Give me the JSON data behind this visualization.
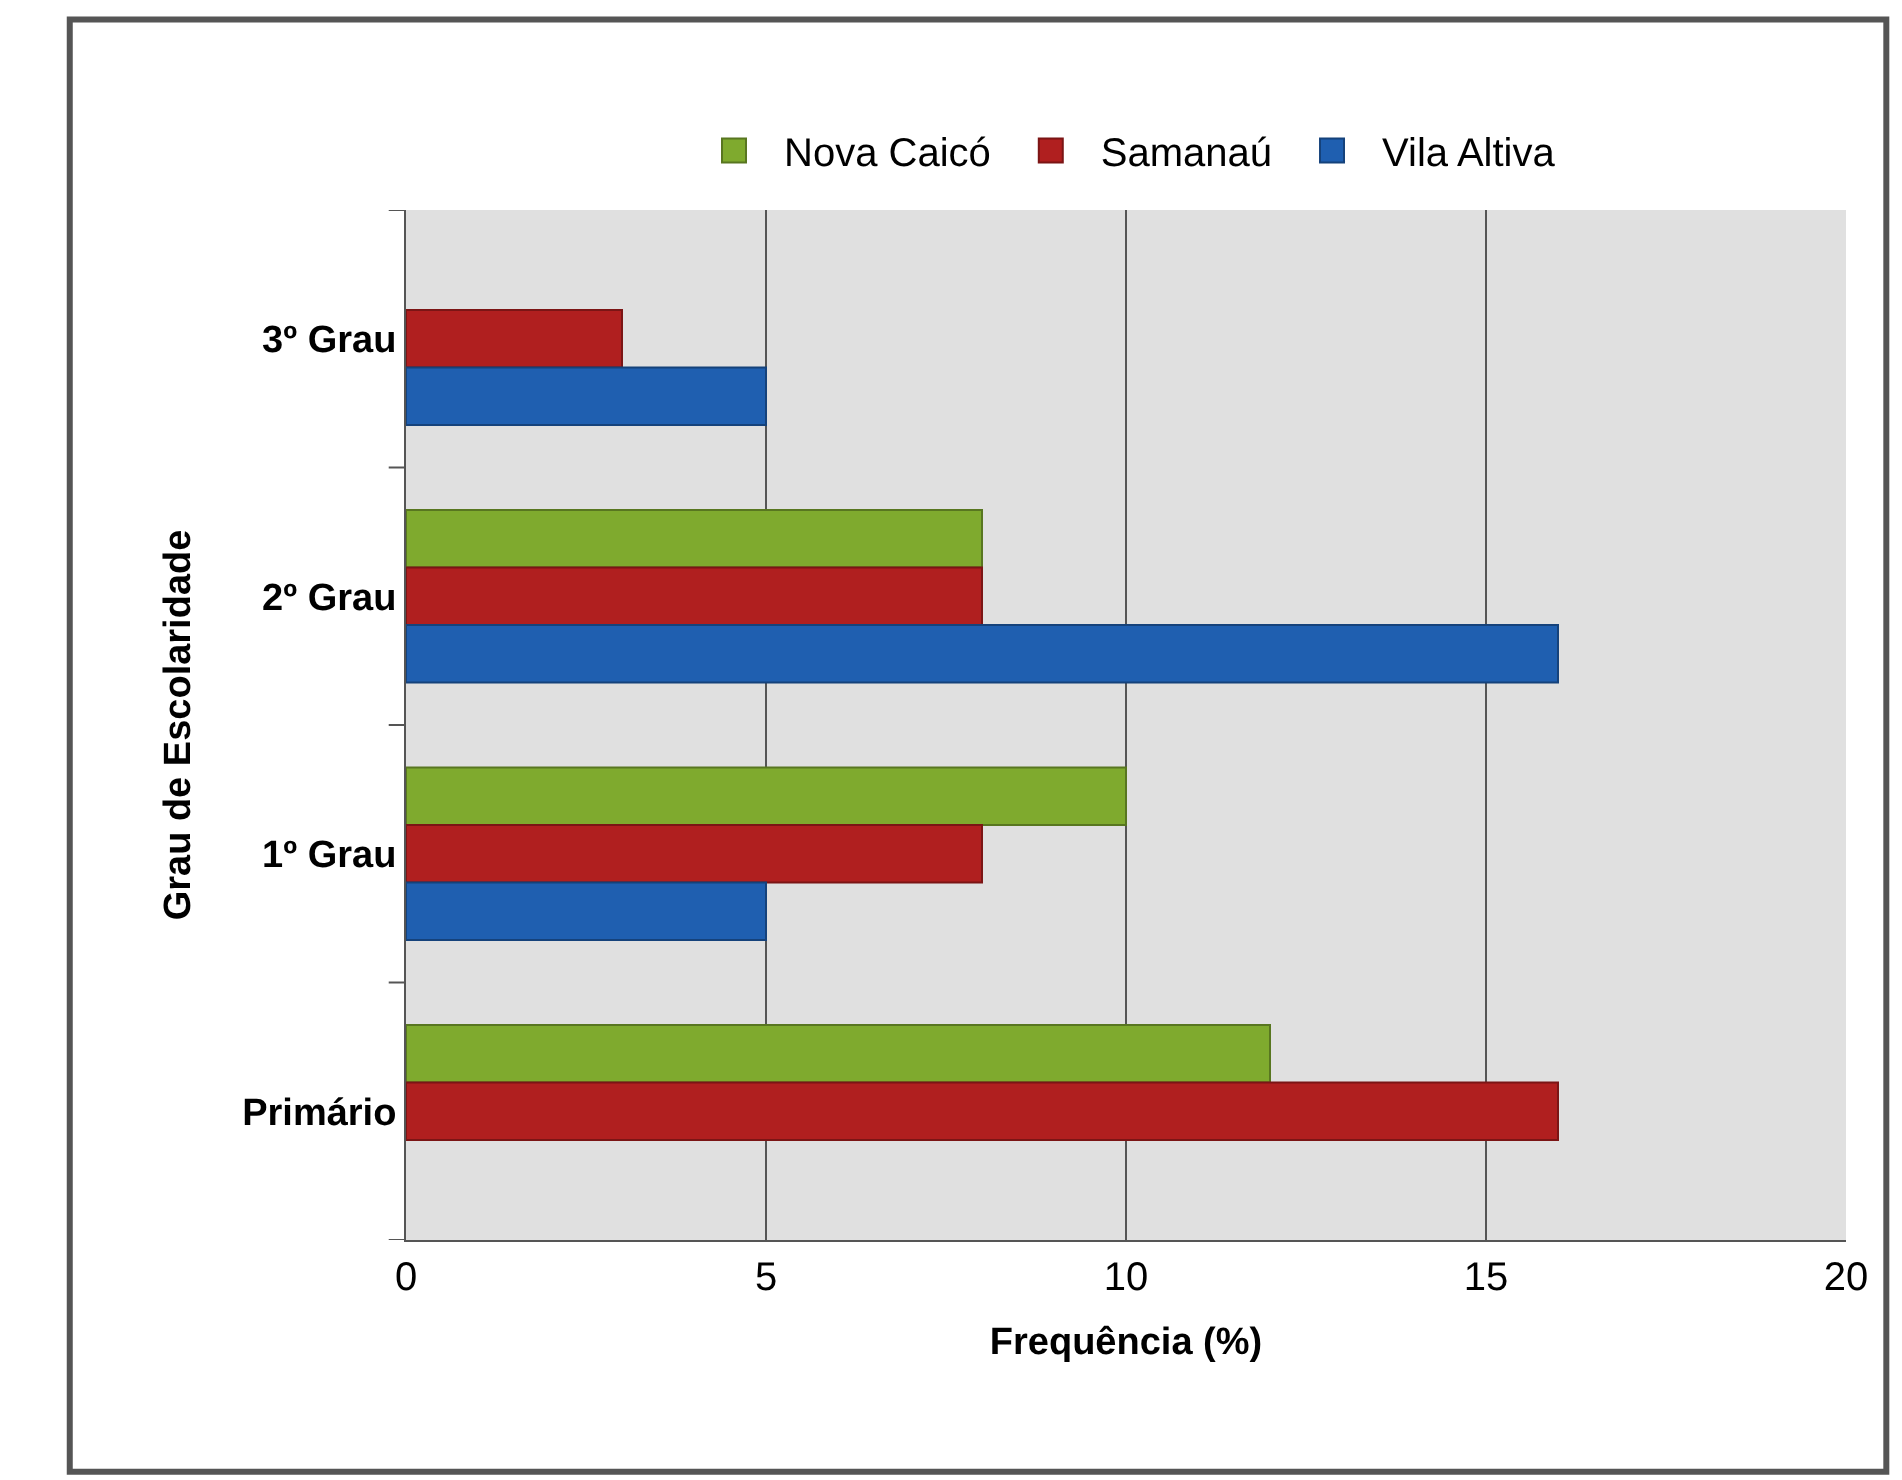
{
  "chart_data": {
    "type": "bar",
    "orientation": "horizontal",
    "xlabel": "Frequência (%)",
    "ylabel": "Grau de Escolaridade",
    "categories": [
      "3º Grau",
      "2º Grau",
      "1º Grau",
      "Primário"
    ],
    "series": [
      {
        "name": "Nova Caicó",
        "color": "#7faa2e",
        "values": [
          null,
          8,
          10,
          12
        ]
      },
      {
        "name": "Samanaú",
        "color": "#b01f1f",
        "values": [
          3,
          8,
          8,
          16
        ]
      },
      {
        "name": "Vila Altiva",
        "color": "#1f5fb0",
        "values": [
          5,
          16,
          5,
          null
        ]
      }
    ],
    "xlim": [
      0,
      20
    ],
    "xticks": [
      0,
      5,
      10,
      15,
      20
    ],
    "grid": "x",
    "legend": "top"
  }
}
